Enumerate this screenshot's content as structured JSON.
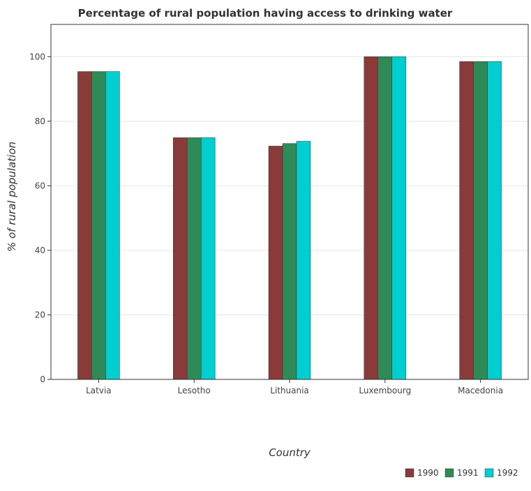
{
  "chart_data": {
    "type": "bar",
    "title": "Percentage of rural population having access to drinking water",
    "xlabel": "Country",
    "ylabel": "% of rural population",
    "categories": [
      "Latvia",
      "Lesotho",
      "Lithuania",
      "Luxembourg",
      "Macedonia"
    ],
    "series": [
      {
        "name": "1990",
        "color": "#8b3a3a",
        "values": [
          95.4,
          74.9,
          72.3,
          100,
          98.5
        ]
      },
      {
        "name": "1991",
        "color": "#2e8b57",
        "values": [
          95.4,
          74.9,
          73.1,
          100,
          98.5
        ]
      },
      {
        "name": "1992",
        "color": "#00ced1",
        "values": [
          95.4,
          74.9,
          73.8,
          100,
          98.5
        ]
      }
    ],
    "ylim": [
      0,
      110
    ],
    "yticks": [
      0,
      20,
      40,
      60,
      80,
      100
    ],
    "grid": true,
    "legend_position": "bottom-right"
  }
}
